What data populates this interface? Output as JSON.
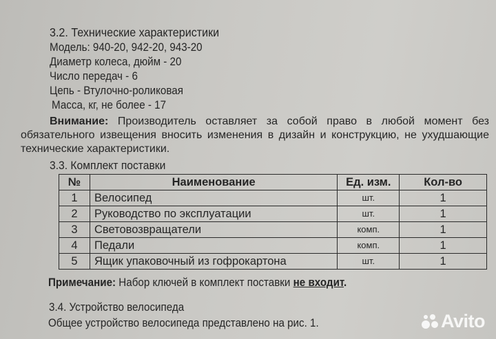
{
  "section_3_2": {
    "heading": "3.2. Технические характеристики",
    "specs": [
      "Модель: 940-20, 942-20, 943-20",
      "Диаметр колеса, дюйм - 20",
      "Число передач - 6",
      "Цепь - Втулочно-роликовая",
      "Масса, кг, не более - 17"
    ],
    "notice_label": "Внимание:",
    "notice_text": "Производитель оставляет за собой право в любой момент без обязательного извещения вносить изменения в дизайн и конструкцию, не ухудшающие технические характеристики."
  },
  "section_3_3": {
    "heading": "3.3. Комплект поставки",
    "columns": [
      "№",
      "Наименование",
      "Ед. изм.",
      "Кол-во"
    ],
    "rows": [
      {
        "num": "1",
        "name": "Велосипед",
        "unit": "шт.",
        "qty": "1"
      },
      {
        "num": "2",
        "name": "Руководство по эксплуатации",
        "unit": "шт.",
        "qty": "1"
      },
      {
        "num": "3",
        "name": "Световозвращатели",
        "unit": "комп.",
        "qty": "1"
      },
      {
        "num": "4",
        "name": "Педали",
        "unit": "комп.",
        "qty": "1"
      },
      {
        "num": "5",
        "name": "Ящик упаковочный из гофрокартона",
        "unit": "шт.",
        "qty": "1"
      }
    ],
    "note_label": "Примечание:",
    "note_text": "Набор ключей в комплект поставки",
    "note_emphasis": "не входит",
    "note_end": "."
  },
  "section_3_4": {
    "heading": "3.4. Устройство велосипеда",
    "text": "Общее устройство велосипеда представлено на рис. 1."
  },
  "watermark": "Avito"
}
